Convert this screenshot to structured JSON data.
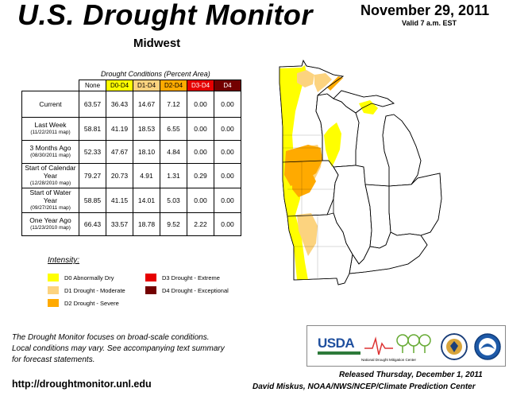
{
  "header": {
    "title": "U.S. Drought Monitor",
    "region": "Midwest",
    "date": "November 29, 2011",
    "valid": "Valid 7 a.m. EST"
  },
  "table": {
    "caption": "Drought Conditions (Percent Area)",
    "columns": [
      "None",
      "D0-D4",
      "D1-D4",
      "D2-D4",
      "D3-D4",
      "D4"
    ],
    "column_colors": [
      "#ffffff",
      "#ffff00",
      "#fcd37f",
      "#ffaa00",
      "#e60000",
      "#730000"
    ],
    "column_text_colors": [
      "#000000",
      "#000000",
      "#000000",
      "#000000",
      "#ffffff",
      "#ffffff"
    ],
    "rows": [
      {
        "label": "Current",
        "sub": "",
        "values": [
          "63.57",
          "36.43",
          "14.67",
          "7.12",
          "0.00",
          "0.00"
        ]
      },
      {
        "label": "Last Week",
        "sub": "(11/22/2011 map)",
        "values": [
          "58.81",
          "41.19",
          "18.53",
          "6.55",
          "0.00",
          "0.00"
        ]
      },
      {
        "label": "3 Months Ago",
        "sub": "(08/30/2011 map)",
        "values": [
          "52.33",
          "47.67",
          "18.10",
          "4.84",
          "0.00",
          "0.00"
        ]
      },
      {
        "label": "Start of Calendar Year",
        "sub": "(12/28/2010 map)",
        "values": [
          "79.27",
          "20.73",
          "4.91",
          "1.31",
          "0.29",
          "0.00"
        ]
      },
      {
        "label": "Start of Water Year",
        "sub": "(09/27/2011 map)",
        "values": [
          "58.85",
          "41.15",
          "14.01",
          "5.03",
          "0.00",
          "0.00"
        ]
      },
      {
        "label": "One Year Ago",
        "sub": "(11/23/2010 map)",
        "values": [
          "66.43",
          "33.57",
          "18.78",
          "9.52",
          "2.22",
          "0.00"
        ]
      }
    ]
  },
  "legend": {
    "title": "Intensity:",
    "items": [
      {
        "label": "D0 Abnormally Dry",
        "color": "#ffff00"
      },
      {
        "label": "D1 Drought - Moderate",
        "color": "#fcd37f"
      },
      {
        "label": "D2 Drought - Severe",
        "color": "#ffaa00"
      },
      {
        "label": "D3 Drought - Extreme",
        "color": "#e60000"
      },
      {
        "label": "D4 Drought - Exceptional",
        "color": "#730000"
      }
    ]
  },
  "footer": {
    "note_lines": [
      "The Drought Monitor focuses on broad-scale conditions.",
      "Local conditions may vary. See accompanying text summary",
      "for forecast statements."
    ],
    "url": "http://droughtmonitor.unl.edu",
    "released": "Released Thursday, December 1, 2011",
    "author": "David Miskus, NOAA/NWS/NCEP/Climate Prediction Center"
  },
  "logos": {
    "usda": "USDA",
    "ndmc": "National Drought Mitigation Center"
  },
  "map_colors": {
    "d0": "#ffff00",
    "d1": "#fcd37f",
    "d2": "#ffaa00",
    "border": "#000000",
    "lake": "#ffffff"
  }
}
